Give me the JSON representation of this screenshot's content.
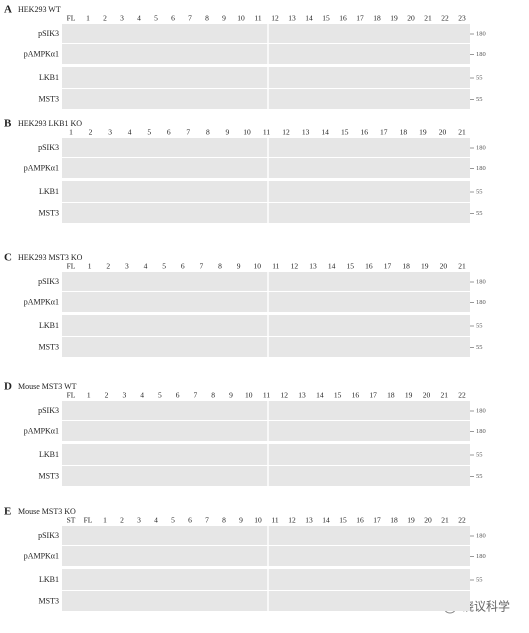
{
  "panels": [
    {
      "letter": "A",
      "title": "HEK293  WT",
      "lanes": [
        "FL",
        "1",
        "2",
        "3",
        "4",
        "5",
        "6",
        "7",
        "8",
        "9",
        "10",
        "11",
        "12",
        "13",
        "14",
        "15",
        "16",
        "17",
        "18",
        "19",
        "20",
        "21",
        "22",
        "23"
      ],
      "rows": [
        {
          "label": "pSIK3",
          "marker": "180"
        },
        {
          "label": "pAMPKα1",
          "marker": "180"
        },
        {
          "label": "LKB1",
          "marker": "55"
        },
        {
          "label": "MST3",
          "marker": "55"
        }
      ]
    },
    {
      "letter": "B",
      "title": "HEK293 LKB1 KO",
      "lanes": [
        "1",
        "2",
        "3",
        "4",
        "5",
        "6",
        "7",
        "8",
        "9",
        "10",
        "11",
        "12",
        "13",
        "14",
        "15",
        "16",
        "17",
        "18",
        "19",
        "20",
        "21"
      ],
      "rows": [
        {
          "label": "pSIK3",
          "marker": "180"
        },
        {
          "label": "pAMPKα1",
          "marker": "180"
        },
        {
          "label": "LKB1",
          "marker": "55"
        },
        {
          "label": "MST3",
          "marker": "55"
        }
      ]
    },
    {
      "letter": "C",
      "title": "HEK293 MST3 KO",
      "lanes": [
        "FL",
        "1",
        "2",
        "3",
        "4",
        "5",
        "6",
        "7",
        "8",
        "9",
        "10",
        "11",
        "12",
        "13",
        "14",
        "15",
        "16",
        "17",
        "18",
        "19",
        "20",
        "21"
      ],
      "rows": [
        {
          "label": "pSIK3",
          "marker": "180"
        },
        {
          "label": "pAMPKα1",
          "marker": "180"
        },
        {
          "label": "LKB1",
          "marker": "55"
        },
        {
          "label": "MST3",
          "marker": "55"
        }
      ]
    },
    {
      "letter": "D",
      "title": "Mouse MST3 WT",
      "lanes": [
        "FL",
        "1",
        "2",
        "3",
        "4",
        "5",
        "6",
        "7",
        "8",
        "9",
        "10",
        "11",
        "12",
        "13",
        "14",
        "15",
        "16",
        "17",
        "18",
        "19",
        "20",
        "21",
        "22"
      ],
      "rows": [
        {
          "label": "pSIK3",
          "marker": "180"
        },
        {
          "label": "pAMPKα1",
          "marker": "180"
        },
        {
          "label": "LKB1",
          "marker": "55"
        },
        {
          "label": "MST3",
          "marker": "55"
        }
      ]
    },
    {
      "letter": "E",
      "title": "Mouse MST3 KO",
      "lanes": [
        "ST",
        "FL",
        "1",
        "2",
        "3",
        "4",
        "5",
        "6",
        "7",
        "8",
        "9",
        "10",
        "11",
        "12",
        "13",
        "14",
        "15",
        "16",
        "17",
        "18",
        "19",
        "20",
        "21",
        "22"
      ],
      "rows": [
        {
          "label": "pSIK3",
          "marker": "180"
        },
        {
          "label": "pAMPKα1",
          "marker": "180"
        },
        {
          "label": "LKB1",
          "marker": "55"
        },
        {
          "label": "MST3"
        }
      ]
    }
  ],
  "watermark": "饶议科学"
}
